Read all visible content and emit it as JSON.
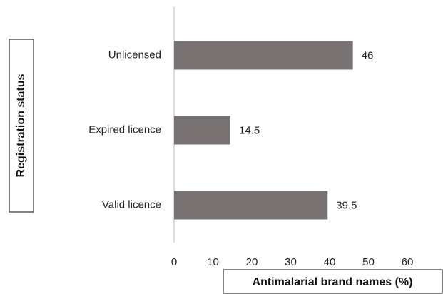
{
  "chart_data": {
    "type": "bar",
    "orientation": "horizontal",
    "categories": [
      "Unlicensed",
      "Expired licence",
      "Valid licence"
    ],
    "values": [
      46,
      14.5,
      39.5
    ],
    "color": "#777171",
    "xlim": [
      0,
      60
    ],
    "xticks": [
      0,
      10,
      20,
      30,
      40,
      50,
      60
    ],
    "xlabel": "Antimalarial brand names (%)",
    "ylabel": "Registration status"
  }
}
